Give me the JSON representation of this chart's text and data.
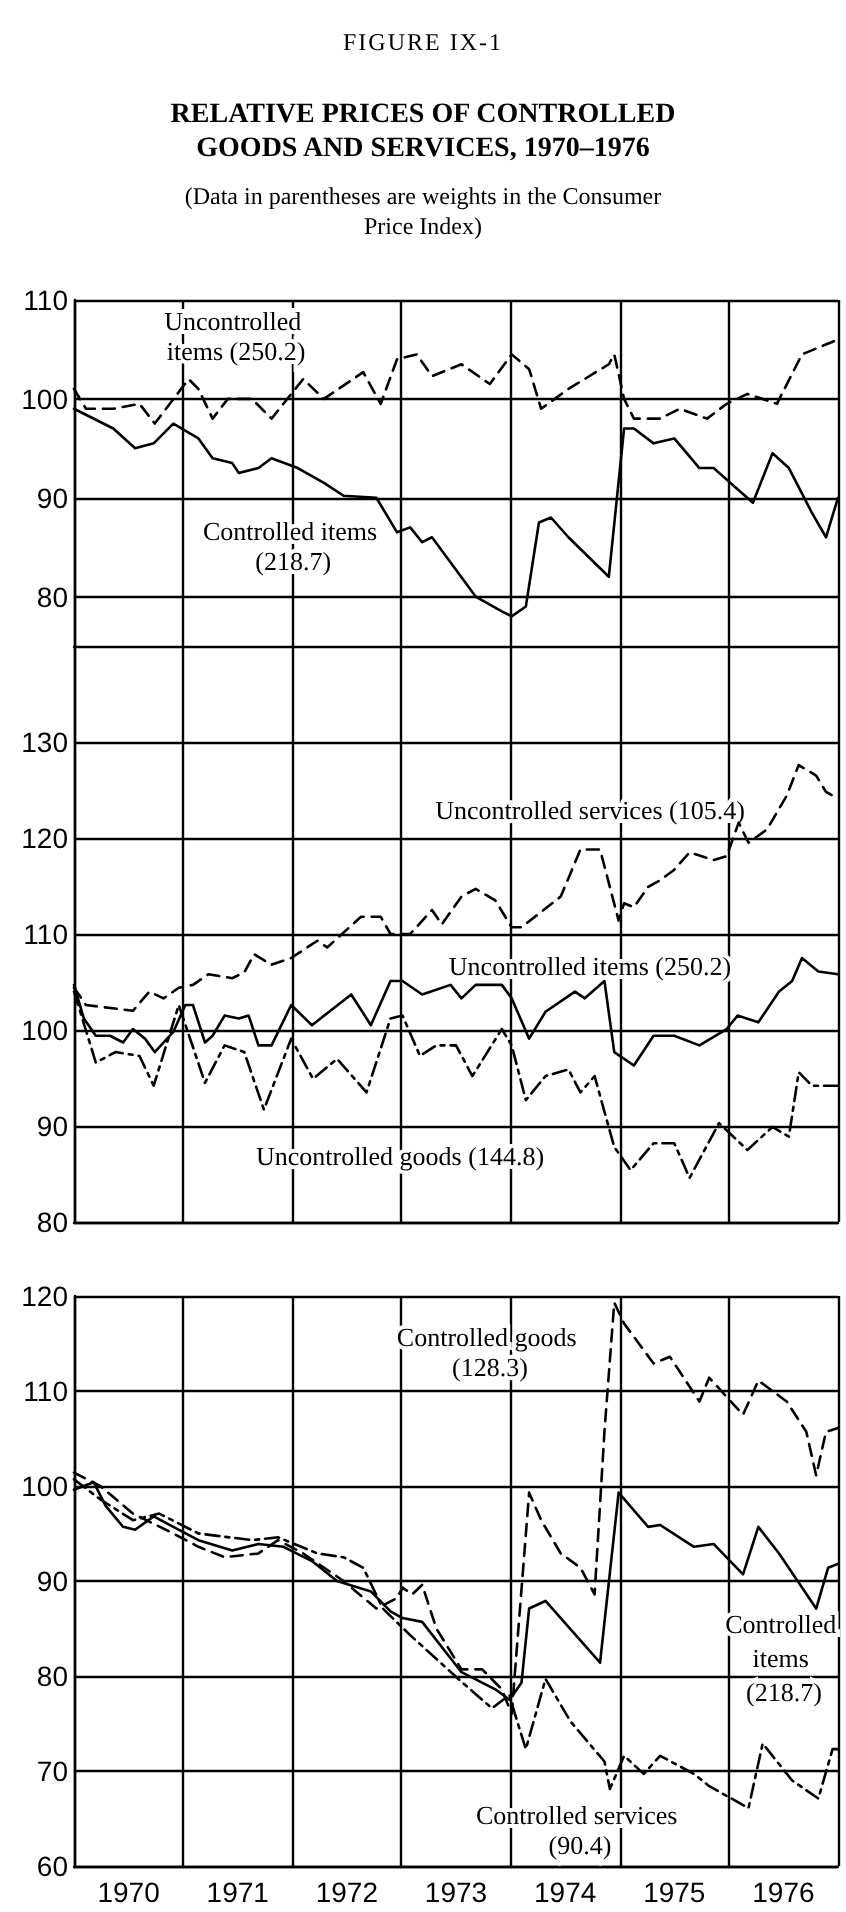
{
  "chart_data": [
    {
      "type": "line",
      "title": "RELATIVE PRICES OF CONTROLLED GOODS AND SERVICES, 1970–1976",
      "subtitle": "(Data in parentheses are weights in the Consumer Price Index)",
      "annotations": [
        "FIGURE IX-1"
      ],
      "xlim": [
        1970,
        1977
      ],
      "xticks": [
        {
          "value": 1970,
          "label": null
        },
        {
          "value": 1971,
          "label": null
        },
        {
          "value": 1972,
          "label": null
        },
        {
          "value": 1973,
          "label": null
        },
        {
          "value": 1974,
          "label": null
        },
        {
          "value": 1975,
          "label": null
        },
        {
          "value": 1976,
          "label": null
        },
        {
          "value": 1977,
          "label": null
        }
      ],
      "ylim": [
        75,
        110
      ],
      "yticks": [
        80,
        90,
        100,
        110
      ],
      "grid": true,
      "tick_labels": "y",
      "marker": "none",
      "series": [
        {
          "name": "Uncontrolled items (250.2)",
          "color": "#000000",
          "line_style": "dashed",
          "x": [
            1970,
            1970.11,
            1970.36,
            1970.6,
            1970.74,
            1971.05,
            1971.14,
            1971.27,
            1971.41,
            1971.63,
            1971.81,
            1972.1,
            1972.29,
            1972.65,
            1972.81,
            1972.96,
            1973.14,
            1973.28,
            1973.55,
            1973.81,
            1974.01,
            1974.17,
            1974.28,
            1974.53,
            1974.9,
            1974.95,
            1975.04,
            1975.13,
            1975.37,
            1975.55,
            1975.8,
            1975.98,
            1976.17,
            1976.44,
            1976.67,
            1977
          ],
          "values": [
            101,
            99,
            99,
            99.5,
            97.5,
            102,
            101,
            98,
            100,
            100,
            98,
            102,
            100,
            102.7,
            99.5,
            104,
            104.5,
            102.3,
            103.5,
            101.5,
            104.5,
            103,
            99,
            101,
            103.5,
            104.5,
            100,
            98,
            98,
            99,
            98,
            99.5,
            100.5,
            99.5,
            104.5,
            106
          ]
        },
        {
          "name": "Controlled items (218.7)",
          "color": "#000000",
          "line_style": "solid",
          "x": [
            1970,
            1970.36,
            1970.56,
            1970.73,
            1970.91,
            1971.14,
            1971.27,
            1971.45,
            1971.51,
            1971.69,
            1971.81,
            1972.05,
            1972.29,
            1972.47,
            1972.77,
            1972.96,
            1973.08,
            1973.19,
            1973.28,
            1973.68,
            1973.92,
            1974.01,
            1974.14,
            1974.26,
            1974.37,
            1974.53,
            1974.9,
            1975.04,
            1975.13,
            1975.31,
            1975.5,
            1975.73,
            1975.86,
            1976.22,
            1976.4,
            1976.55,
            1976.76,
            1976.89,
            1977
          ],
          "values": [
            99,
            97,
            95,
            95.5,
            97.5,
            96,
            94,
            93.5,
            92.5,
            93,
            94,
            93,
            91.5,
            90.2,
            90,
            86.5,
            87,
            85.5,
            86,
            80,
            78.5,
            78,
            79,
            87.5,
            88,
            86,
            82,
            97,
            97,
            95.5,
            96,
            93,
            93,
            89.5,
            94.5,
            93,
            88.5,
            86,
            90
          ]
        }
      ]
    },
    {
      "type": "line",
      "xlim": [
        1970,
        1977
      ],
      "xticks": [
        {
          "value": 1970,
          "label": null
        },
        {
          "value": 1971,
          "label": null
        },
        {
          "value": 1972,
          "label": null
        },
        {
          "value": 1973,
          "label": null
        },
        {
          "value": 1974,
          "label": null
        },
        {
          "value": 1975,
          "label": null
        },
        {
          "value": 1976,
          "label": null
        },
        {
          "value": 1977,
          "label": null
        }
      ],
      "ylim": [
        80,
        140
      ],
      "yticks": [
        80,
        90,
        100,
        110,
        120,
        130
      ],
      "grid": true,
      "tick_labels": "y",
      "marker": "none",
      "series": [
        {
          "name": "Uncontrolled services (105.4)",
          "color": "#000000",
          "line_style": "dashed",
          "x": [
            1970,
            1970.11,
            1970.54,
            1970.69,
            1970.82,
            1970.96,
            1971.09,
            1971.23,
            1971.45,
            1971.56,
            1971.65,
            1971.81,
            1971.99,
            1972.23,
            1972.32,
            1972.63,
            1972.81,
            1972.9,
            1973.08,
            1973.28,
            1973.37,
            1973.55,
            1973.68,
            1973.86,
            1974.01,
            1974.1,
            1974.46,
            1974.64,
            1974.82,
            1974.99,
            1975.04,
            1975.13,
            1975.26,
            1975.37,
            1975.5,
            1975.64,
            1975.86,
            1975.98,
            1976.09,
            1976.18,
            1976.35,
            1976.53,
            1976.64,
            1976.8,
            1976.89,
            1977
          ],
          "values": [
            104.4,
            102.6,
            102,
            104,
            103.3,
            104.4,
            104.7,
            105.8,
            105.4,
            106,
            107.9,
            106.8,
            107.5,
            109.3,
            108.6,
            111.8,
            111.8,
            110,
            110,
            112.5,
            111,
            113.9,
            114.7,
            113.5,
            110.7,
            110.7,
            113.9,
            118.8,
            118.8,
            111.4,
            113.2,
            112.8,
            114.9,
            115.6,
            116.7,
            118.5,
            117.7,
            118.1,
            121.6,
            119.5,
            120.9,
            124.4,
            127.6,
            126.5,
            124.8,
            124.1
          ]
        },
        {
          "name": "Uncontrolled items (250.2)",
          "color": "#000000",
          "line_style": "solid",
          "x": [
            1970,
            1970.09,
            1970.2,
            1970.33,
            1970.45,
            1970.54,
            1970.65,
            1970.74,
            1970.91,
            1971.02,
            1971.09,
            1971.2,
            1971.27,
            1971.38,
            1971.51,
            1971.6,
            1971.69,
            1971.81,
            1971.99,
            1972.18,
            1972.54,
            1972.72,
            1972.9,
            1973.01,
            1973.19,
            1973.45,
            1973.55,
            1973.68,
            1973.92,
            1974.01,
            1974.17,
            1974.32,
            1974.59,
            1974.68,
            1974.86,
            1974.95,
            1975.13,
            1975.31,
            1975.5,
            1975.73,
            1975.98,
            1976.08,
            1976.27,
            1976.46,
            1976.58,
            1976.67,
            1976.82,
            1977
          ],
          "values": [
            104.7,
            101.2,
            99.4,
            99.4,
            98.7,
            100.1,
            99.1,
            97.7,
            99.8,
            102.6,
            102.6,
            98.7,
            99.4,
            101.5,
            101.2,
            101.5,
            98.4,
            98.4,
            102.6,
            100.5,
            103.7,
            100.5,
            105.1,
            105.1,
            103.7,
            104.7,
            103.3,
            104.7,
            104.7,
            103.3,
            99.1,
            101.9,
            104,
            103.3,
            105.1,
            97.7,
            96.3,
            99.4,
            99.4,
            98.4,
            100.1,
            101.5,
            100.8,
            104,
            105.1,
            107.5,
            106.1,
            105.8
          ]
        },
        {
          "name": "Uncontrolled goods (144.8)",
          "color": "#000000",
          "line_style": "dashdot",
          "x": [
            1970,
            1970.2,
            1970.38,
            1970.6,
            1970.73,
            1970.96,
            1971.2,
            1971.38,
            1971.56,
            1971.74,
            1971.99,
            1972.19,
            1972.41,
            1972.68,
            1972.9,
            1973.01,
            1973.17,
            1973.32,
            1973.5,
            1973.65,
            1973.92,
            1974.01,
            1974.14,
            1974.32,
            1974.53,
            1974.64,
            1974.77,
            1974.95,
            1975.1,
            1975.31,
            1975.5,
            1975.64,
            1975.91,
            1976.17,
            1976.4,
            1976.55,
            1976.64,
            1976.76,
            1977
          ],
          "values": [
            104,
            96.6,
            97.7,
            97.3,
            94.2,
            102.6,
            94.5,
            98.4,
            97.7,
            91.7,
            99.1,
            94.9,
            97,
            93.5,
            101.2,
            101.5,
            97.3,
            98.4,
            98.4,
            95.2,
            100.1,
            98.4,
            92.7,
            95.2,
            95.9,
            93.5,
            95.2,
            87.8,
            85.4,
            88.2,
            88.2,
            84.6,
            90.3,
            87.5,
            89.9,
            88.9,
            95.6,
            94.2,
            94.2
          ]
        }
      ]
    },
    {
      "type": "line",
      "xlim": [
        1970,
        1977
      ],
      "xticks": [
        {
          "value": 1970,
          "label": null
        },
        {
          "value": 1970.5,
          "label": "1970"
        },
        {
          "value": 1971,
          "label": null
        },
        {
          "value": 1971.5,
          "label": "1971"
        },
        {
          "value": 1972,
          "label": null
        },
        {
          "value": 1972.5,
          "label": "1972"
        },
        {
          "value": 1973,
          "label": null
        },
        {
          "value": 1973.5,
          "label": "1973"
        },
        {
          "value": 1974,
          "label": null
        },
        {
          "value": 1974.5,
          "label": "1974"
        },
        {
          "value": 1975,
          "label": null
        },
        {
          "value": 1975.5,
          "label": "1975"
        },
        {
          "value": 1976,
          "label": null
        },
        {
          "value": 1976.5,
          "label": "1976"
        },
        {
          "value": 1977,
          "label": null
        }
      ],
      "ylim": [
        60,
        120
      ],
      "yticks": [
        60,
        70,
        80,
        90,
        100,
        110,
        120
      ],
      "grid": true,
      "marker": "none",
      "series": [
        {
          "name": "Controlled goods (128.3)",
          "color": "#000000",
          "line_style": "dashed",
          "x": [
            1970,
            1970.24,
            1970.54,
            1970.91,
            1971.14,
            1971.38,
            1971.69,
            1971.87,
            1972.1,
            1972.47,
            1972.77,
            1972.96,
            1973.01,
            1973.1,
            1973.19,
            1973.32,
            1973.55,
            1973.74,
            1973.92,
            1974.01,
            1974.17,
            1974.28,
            1974.46,
            1974.64,
            1974.77,
            1974.86,
            1974.95,
            1975.04,
            1975.31,
            1975.46,
            1975.73,
            1975.82,
            1976.13,
            1976.27,
            1976.53,
            1976.71,
            1976.8,
            1976.89,
            1977
          ],
          "values": [
            101.4,
            100,
            97.1,
            95,
            93.6,
            92.5,
            92.9,
            94.3,
            92.9,
            90,
            87.1,
            88.2,
            89.3,
            88.6,
            89.6,
            85,
            80.7,
            80.7,
            78.6,
            76,
            99.3,
            96.4,
            92.9,
            91.4,
            88.6,
            105.7,
            119.3,
            117.1,
            112.9,
            113.6,
            108.9,
            111.4,
            107.5,
            111.1,
            108.9,
            105.7,
            101.1,
            105.7,
            106.1
          ]
        },
        {
          "name": "Controlled items (218.7)",
          "color": "#000000",
          "line_style": "solid",
          "x": [
            1970,
            1970.18,
            1970.29,
            1970.45,
            1970.56,
            1970.73,
            1970.91,
            1971.14,
            1971.45,
            1971.69,
            1971.92,
            1972.18,
            1972.41,
            1972.72,
            1972.9,
            1973.01,
            1973.19,
            1973.55,
            1973.86,
            1973.99,
            1974.1,
            1974.17,
            1974.32,
            1974.82,
            1974.99,
            1975.26,
            1975.37,
            1975.68,
            1975.86,
            1976.13,
            1976.27,
            1976.46,
            1976.8,
            1976.91,
            1977
          ],
          "values": [
            99.6,
            100.4,
            97.9,
            95.7,
            95.4,
            96.8,
            95.7,
            94.3,
            93.2,
            93.9,
            93.6,
            92.1,
            90,
            88.9,
            86.8,
            86.1,
            85.7,
            80.4,
            78.6,
            77.5,
            79.3,
            87.1,
            87.9,
            81.4,
            99.3,
            95.7,
            95.9,
            93.6,
            93.9,
            90.7,
            95.7,
            92.9,
            87.1,
            91.4,
            91.8
          ]
        },
        {
          "name": "Controlled services (90.4)",
          "color": "#000000",
          "line_style": "dashdot",
          "x": [
            1970,
            1970.24,
            1970.54,
            1970.78,
            1971.14,
            1971.63,
            1971.87,
            1972.23,
            1972.47,
            1972.65,
            1972.83,
            1973.08,
            1973.55,
            1973.83,
            1973.99,
            1974.04,
            1974.14,
            1974.32,
            1974.55,
            1974.86,
            1974.91,
            1975.04,
            1975.22,
            1975.37,
            1975.68,
            1975.82,
            1976.18,
            1976.31,
            1976.58,
            1976.82,
            1976.95,
            1977
          ],
          "values": [
            100.7,
            98.6,
            96.4,
            97.1,
            95,
            94.3,
            94.6,
            92.9,
            92.5,
            91.4,
            87.1,
            84.3,
            79.4,
            76.6,
            78,
            76,
            72.3,
            79.7,
            75.2,
            71,
            68.1,
            71.6,
            69.7,
            71.6,
            69.7,
            68.4,
            66.1,
            72.9,
            69,
            67.1,
            72.3,
            72.3
          ]
        }
      ]
    }
  ]
}
